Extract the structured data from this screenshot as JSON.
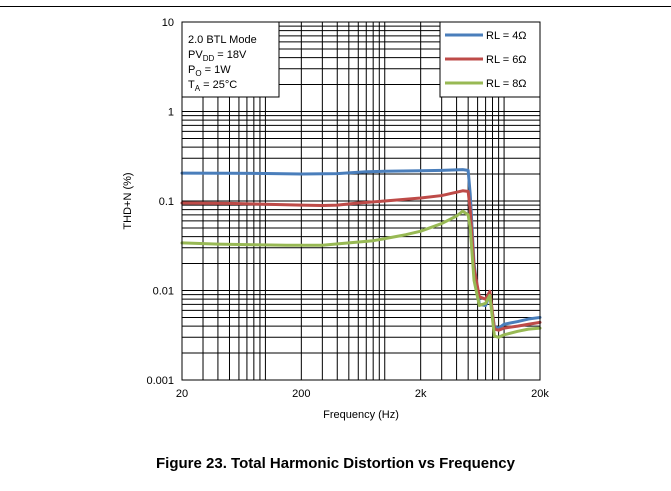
{
  "caption": "Figure 23. Total Harmonic Distortion vs Frequency",
  "conditions": [
    {
      "main": "2.0 BTL Mode",
      "sub": "",
      "rest": ""
    },
    {
      "main": "PV",
      "sub": "DD",
      "rest": " = 18V"
    },
    {
      "main": "P",
      "sub": "O",
      "rest": " = 1W"
    },
    {
      "main": "T",
      "sub": "A",
      "rest": " = 25°C"
    }
  ],
  "chart_data": {
    "type": "line",
    "xlabel": "Frequency (Hz)",
    "ylabel": "THD+N (%)",
    "xscale": "log",
    "yscale": "log",
    "xlim": [
      20,
      20000
    ],
    "ylim": [
      0.001,
      10
    ],
    "x_ticks": [
      {
        "value": 20,
        "label": "20"
      },
      {
        "value": 200,
        "label": "200"
      },
      {
        "value": 2000,
        "label": "2k"
      },
      {
        "value": 20000,
        "label": "20k"
      }
    ],
    "y_ticks": [
      {
        "value": 0.001,
        "label": "0.001"
      },
      {
        "value": 0.01,
        "label": "0.01"
      },
      {
        "value": 0.1,
        "label": "0.1"
      },
      {
        "value": 1,
        "label": "1"
      },
      {
        "value": 10,
        "label": "10"
      }
    ],
    "grid": true,
    "legend_position": "top-right",
    "series": [
      {
        "name": "RL = 4Ω",
        "color": "#4a7ebb",
        "points": [
          [
            20,
            0.205
          ],
          [
            50,
            0.204
          ],
          [
            100,
            0.203
          ],
          [
            200,
            0.2
          ],
          [
            400,
            0.202
          ],
          [
            700,
            0.212
          ],
          [
            1000,
            0.215
          ],
          [
            2000,
            0.218
          ],
          [
            3000,
            0.22
          ],
          [
            4500,
            0.224
          ],
          [
            5000,
            0.22
          ],
          [
            5200,
            0.12
          ],
          [
            5600,
            0.02
          ],
          [
            6200,
            0.007
          ],
          [
            7000,
            0.0068
          ],
          [
            7600,
            0.009
          ],
          [
            8300,
            0.0039
          ],
          [
            9000,
            0.0038
          ],
          [
            10000,
            0.0042
          ],
          [
            13000,
            0.0045
          ],
          [
            16000,
            0.0048
          ],
          [
            20000,
            0.005
          ]
        ]
      },
      {
        "name": "RL = 6Ω",
        "color": "#be4b48",
        "points": [
          [
            20,
            0.095
          ],
          [
            50,
            0.094
          ],
          [
            100,
            0.092
          ],
          [
            200,
            0.09
          ],
          [
            300,
            0.089
          ],
          [
            400,
            0.09
          ],
          [
            600,
            0.095
          ],
          [
            1000,
            0.1
          ],
          [
            2000,
            0.108
          ],
          [
            3000,
            0.115
          ],
          [
            4500,
            0.13
          ],
          [
            5000,
            0.128
          ],
          [
            5200,
            0.08
          ],
          [
            5600,
            0.018
          ],
          [
            6200,
            0.0085
          ],
          [
            7000,
            0.008
          ],
          [
            7600,
            0.0098
          ],
          [
            8300,
            0.0037
          ],
          [
            9000,
            0.0036
          ],
          [
            10000,
            0.0038
          ],
          [
            13000,
            0.004
          ],
          [
            16000,
            0.0042
          ],
          [
            20000,
            0.0044
          ]
        ]
      },
      {
        "name": "RL = 8Ω",
        "color": "#98b954",
        "points": [
          [
            20,
            0.034
          ],
          [
            40,
            0.033
          ],
          [
            80,
            0.0325
          ],
          [
            150,
            0.032
          ],
          [
            300,
            0.032
          ],
          [
            500,
            0.034
          ],
          [
            800,
            0.036
          ],
          [
            1000,
            0.038
          ],
          [
            1500,
            0.042
          ],
          [
            2000,
            0.046
          ],
          [
            3000,
            0.056
          ],
          [
            4000,
            0.068
          ],
          [
            4500,
            0.077
          ],
          [
            5000,
            0.07
          ],
          [
            5200,
            0.05
          ],
          [
            5600,
            0.013
          ],
          [
            6200,
            0.0068
          ],
          [
            7000,
            0.0072
          ],
          [
            7600,
            0.0088
          ],
          [
            8300,
            0.0031
          ],
          [
            9000,
            0.003
          ],
          [
            10000,
            0.0032
          ],
          [
            13000,
            0.0035
          ],
          [
            16000,
            0.0037
          ],
          [
            20000,
            0.0038
          ]
        ]
      }
    ]
  }
}
